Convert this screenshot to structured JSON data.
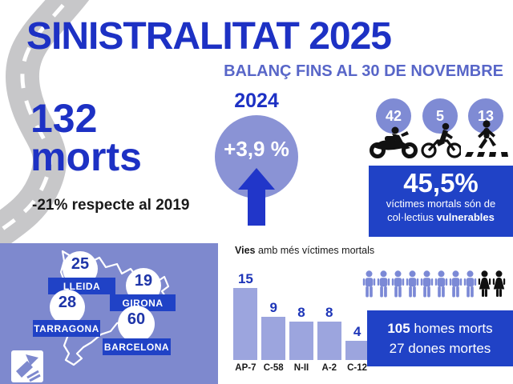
{
  "header": {
    "title": "SINISTRALITAT 2025",
    "subtitle": "BALANÇ FINS AL 30 DE NOVEMBRE"
  },
  "deaths": {
    "count": "132",
    "unit": "morts",
    "comparison": "-21% respecte al 2019"
  },
  "yearly_change": {
    "year": "2024",
    "value": "+3,9 %",
    "icon": "up-arrow-icon"
  },
  "vulnerable": {
    "stats": [
      {
        "count": "42",
        "icon": "motorcycle-icon"
      },
      {
        "count": "5",
        "icon": "bicycle-icon"
      },
      {
        "count": "13",
        "icon": "pedestrian-icon"
      }
    ],
    "percent": "45,5%",
    "line1": "víctimes mortals són de",
    "line2_prefix": "col·lectius ",
    "line2_bold": "vulnerables"
  },
  "map": {
    "region": "Catalunya",
    "provinces": [
      {
        "name": "LLEIDA",
        "value": "25"
      },
      {
        "name": "GIRONA",
        "value": "19"
      },
      {
        "name": "TARRAGONA",
        "value": "28"
      },
      {
        "name": "BARCELONA",
        "value": "60"
      }
    ]
  },
  "chart_data": {
    "type": "bar",
    "title": "Vies amb més víctimes mortals",
    "title_prefix": "Vies",
    "title_rest": " amb més víctimes mortals",
    "categories": [
      "AP-7",
      "C-58",
      "N-II",
      "A-2",
      "C-12"
    ],
    "values": [
      15,
      9,
      8,
      8,
      4
    ],
    "ylim": [
      0,
      15
    ],
    "grid": false,
    "legend": "none",
    "bar_color": "#9ca5de",
    "value_label_color": "#1d35b8"
  },
  "gender": {
    "male_icons": 8,
    "female_icons": 2,
    "line1_bold": "105",
    "line1_rest": " homes morts",
    "line2": "27 dones mortes"
  },
  "icons": [
    "road-graphic",
    "motorcycle-icon",
    "bicycle-icon",
    "pedestrian-icon",
    "male-person-icon",
    "female-person-icon",
    "sct-logo"
  ],
  "colors": {
    "primary_blue": "#1d31c4",
    "periwinkle": "#5866c8",
    "light_purple": "#8a93d5",
    "bar_purple": "#9ca5de",
    "box_blue": "#2042c6",
    "map_background": "#7e89ce",
    "icon_black": "#111111"
  }
}
